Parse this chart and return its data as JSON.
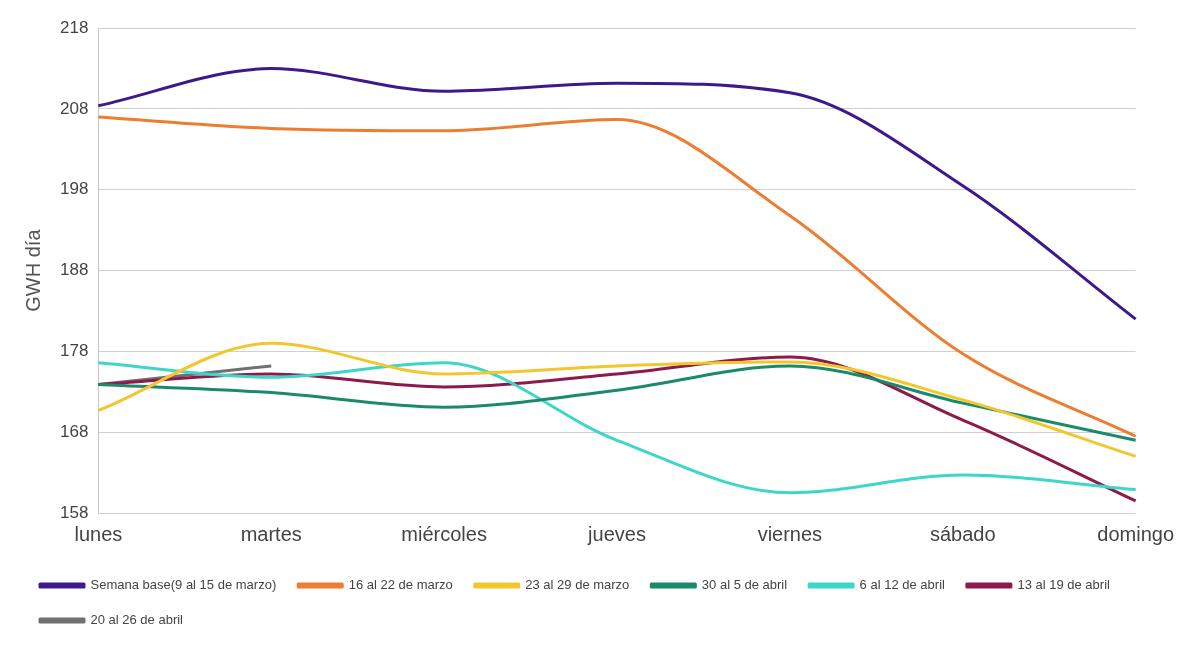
{
  "chart_data": {
    "type": "line",
    "ylabel": "GWH día",
    "categories": [
      "lunes",
      "martes",
      "miércoles",
      "jueves",
      "viernes",
      "sábado",
      "domingo"
    ],
    "ylim": [
      158,
      218
    ],
    "yticks": [
      158,
      168,
      178,
      188,
      198,
      208,
      218
    ],
    "grid": "y",
    "legend": "bottom",
    "marker": "none",
    "line_style": "solid",
    "series": [
      {
        "name": "Semana base(9 al 15 de marzo)",
        "color": "#3d1a8c",
        "values": [
          208.4,
          213,
          210.2,
          211.2,
          210,
          198.5,
          182
        ]
      },
      {
        "name": "16 al 22 de marzo",
        "color": "#ed7d31",
        "values": [
          207,
          205.6,
          205.3,
          206.7,
          194.8,
          177.7,
          167.5
        ]
      },
      {
        "name": "23 al 29 de marzo",
        "color": "#f2c72e",
        "values": [
          170.7,
          179,
          175.2,
          176.2,
          176.7,
          172,
          165
        ]
      },
      {
        "name": "30 al 5 de abril",
        "color": "#1b8a6b",
        "values": [
          173.9,
          172.9,
          171.1,
          173.2,
          176.2,
          171.6,
          167
        ]
      },
      {
        "name": "6 al 12 de abril",
        "color": "#3ed6c8",
        "values": [
          176.6,
          174.8,
          176.6,
          167,
          160.5,
          162.7,
          160.9
        ]
      },
      {
        "name": "13 al 19 de abril",
        "color": "#8c1a4a",
        "values": [
          173.9,
          175.2,
          173.6,
          175.2,
          177.3,
          169.5,
          159.5
        ]
      },
      {
        "name": "20 al 26 de abril",
        "color": "#707070",
        "values": [
          173.9,
          176.2,
          null,
          null,
          null,
          null,
          null
        ]
      }
    ]
  }
}
